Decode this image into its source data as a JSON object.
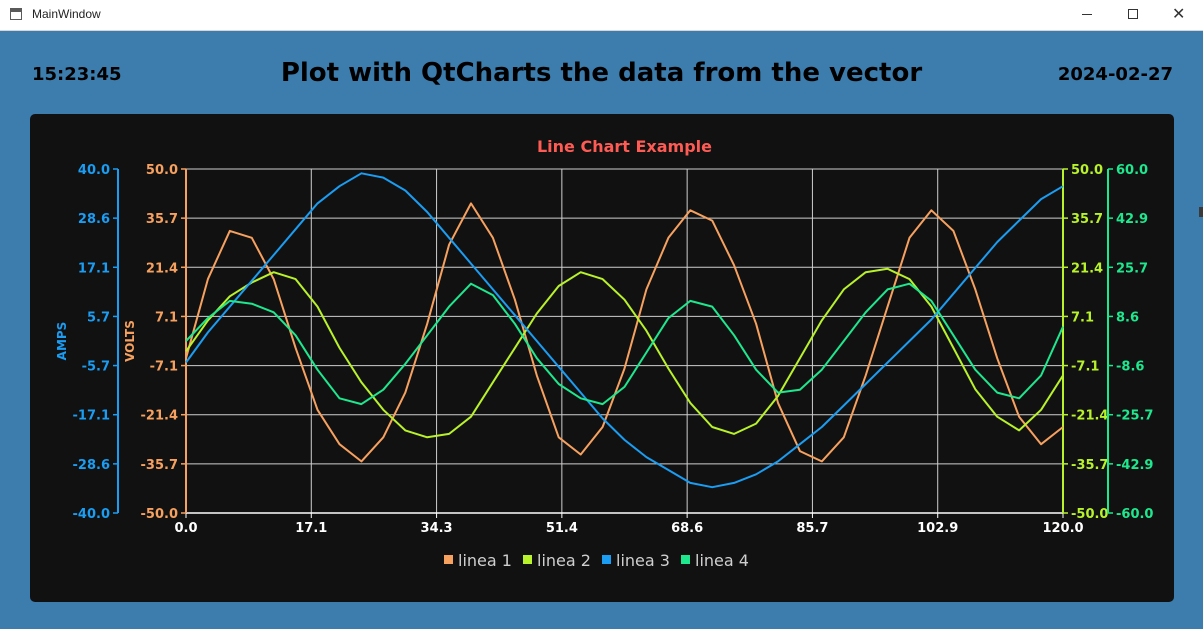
{
  "window": {
    "title": "MainWindow",
    "icon": "app-window-icon"
  },
  "header": {
    "time": "15:23:45",
    "title": "Plot with QtCharts the data from the vector",
    "date": "2024-02-27"
  },
  "chart_data": {
    "type": "line",
    "title": "Line Chart Example",
    "background": "#111111",
    "title_color": "#ff5b55",
    "grid": true,
    "legend_placement": "bottom",
    "x_axis": {
      "range": [
        0,
        120
      ],
      "ticks": [
        "0.0",
        "17.1",
        "34.3",
        "51.4",
        "68.6",
        "85.7",
        "102.9",
        "120.0"
      ],
      "color": "#ffffff"
    },
    "y_axes": [
      {
        "id": "amps",
        "label": "AMPS",
        "side": "left-outer",
        "range": [
          -40,
          40
        ],
        "ticks": [
          "-40.0",
          "-28.6",
          "-17.1",
          "-5.7",
          "5.7",
          "17.1",
          "28.6",
          "40.0"
        ],
        "color": "#1a9df2"
      },
      {
        "id": "volts",
        "label": "VOLTS",
        "side": "left-inner",
        "range": [
          -50,
          50
        ],
        "ticks": [
          "-50.0",
          "-35.7",
          "-21.4",
          "-7.1",
          "7.1",
          "21.4",
          "35.7",
          "50.0"
        ],
        "color": "#f6a15f"
      },
      {
        "id": "y3",
        "label": "",
        "side": "right-inner",
        "range": [
          -50,
          50
        ],
        "ticks": [
          "-50.0",
          "-35.7",
          "-21.4",
          "-7.1",
          "7.1",
          "21.4",
          "35.7",
          "50.0"
        ],
        "color": "#b8f22a"
      },
      {
        "id": "y4",
        "label": "",
        "side": "right-outer",
        "range": [
          -60,
          60
        ],
        "ticks": [
          "-60.0",
          "-42.9",
          "-25.7",
          "-8.6",
          "8.6",
          "25.7",
          "42.9",
          "60.0"
        ],
        "color": "#1ee88e"
      }
    ],
    "series": [
      {
        "name": "linea 1",
        "axis": "volts",
        "color": "#f6a15f",
        "x": [
          0,
          3,
          6,
          9,
          12,
          15,
          18,
          21,
          24,
          27,
          30,
          33,
          36,
          39,
          42,
          45,
          48,
          51,
          54,
          57,
          60,
          63,
          66,
          69,
          72,
          75,
          78,
          81,
          84,
          87,
          90,
          93,
          96,
          99,
          102,
          105,
          108,
          111,
          114,
          117,
          120
        ],
        "y": [
          -5,
          18,
          32,
          30,
          18,
          -2,
          -20,
          -30,
          -35,
          -28,
          -15,
          5,
          28,
          40,
          30,
          12,
          -10,
          -28,
          -33,
          -25,
          -8,
          15,
          30,
          38,
          35,
          22,
          5,
          -18,
          -32,
          -35,
          -28,
          -10,
          10,
          30,
          38,
          32,
          15,
          -5,
          -22,
          -30,
          -25
        ]
      },
      {
        "name": "linea 2",
        "axis": "y3",
        "color": "#b8f22a",
        "x": [
          0,
          3,
          6,
          9,
          12,
          15,
          18,
          21,
          24,
          27,
          30,
          33,
          36,
          39,
          42,
          45,
          48,
          51,
          54,
          57,
          60,
          63,
          66,
          69,
          72,
          75,
          78,
          81,
          84,
          87,
          90,
          93,
          96,
          99,
          102,
          105,
          108,
          111,
          114,
          117,
          120
        ],
        "y": [
          -3,
          6,
          13,
          17,
          20,
          18,
          10,
          -2,
          -12,
          -20,
          -26,
          -28,
          -27,
          -22,
          -12,
          -2,
          8,
          16,
          20,
          18,
          12,
          3,
          -8,
          -18,
          -25,
          -27,
          -24,
          -16,
          -5,
          6,
          15,
          20,
          21,
          18,
          10,
          -2,
          -14,
          -22,
          -26,
          -20,
          -10
        ]
      },
      {
        "name": "linea 3",
        "axis": "amps",
        "color": "#1a9df2",
        "x": [
          0,
          3,
          6,
          9,
          12,
          15,
          18,
          21,
          24,
          27,
          30,
          33,
          36,
          39,
          42,
          45,
          48,
          51,
          54,
          57,
          60,
          63,
          66,
          69,
          72,
          75,
          78,
          81,
          84,
          87,
          90,
          93,
          96,
          99,
          102,
          105,
          108,
          111,
          114,
          117,
          120
        ],
        "y": [
          -5,
          2,
          8,
          14,
          20,
          26,
          32,
          36,
          39,
          38,
          35,
          30,
          24,
          18,
          12,
          6,
          0,
          -6,
          -12,
          -18,
          -23,
          -27,
          -30,
          -33,
          -34,
          -33,
          -31,
          -28,
          -24,
          -20,
          -15,
          -10,
          -5,
          0,
          5,
          11,
          17,
          23,
          28,
          33,
          36
        ]
      },
      {
        "name": "linea 4",
        "axis": "y4",
        "color": "#1ee88e",
        "x": [
          0,
          3,
          6,
          9,
          12,
          15,
          18,
          21,
          24,
          27,
          30,
          33,
          36,
          39,
          42,
          45,
          48,
          51,
          54,
          57,
          60,
          63,
          66,
          69,
          72,
          75,
          78,
          81,
          84,
          87,
          90,
          93,
          96,
          99,
          102,
          105,
          108,
          111,
          114,
          117,
          120
        ],
        "y": [
          0,
          8,
          14,
          13,
          10,
          2,
          -10,
          -20,
          -22,
          -17,
          -8,
          2,
          12,
          20,
          16,
          6,
          -6,
          -15,
          -20,
          -22,
          -16,
          -4,
          8,
          14,
          12,
          2,
          -10,
          -18,
          -17,
          -10,
          0,
          10,
          18,
          20,
          14,
          2,
          -10,
          -18,
          -20,
          -12,
          5
        ]
      }
    ]
  }
}
